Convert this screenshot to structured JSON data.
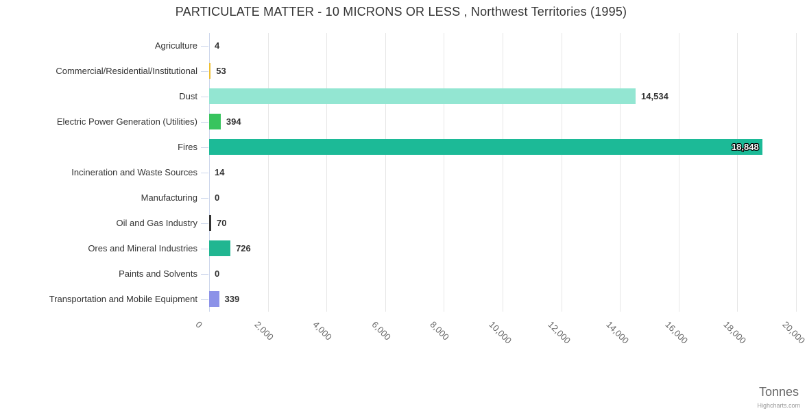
{
  "chart_data": {
    "type": "bar",
    "title": "PARTICULATE MATTER - 10 MICRONS OR LESS , Northwest Territories (1995)",
    "xlabel": "Tonnes",
    "ylabel": "",
    "xlim": [
      0,
      20000
    ],
    "x_tick_labels": [
      "0",
      "2,000",
      "4,000",
      "6,000",
      "8,000",
      "10,000",
      "12,000",
      "14,000",
      "16,000",
      "18,000",
      "20,000"
    ],
    "grid": true,
    "legend": false,
    "categories": [
      "Agriculture",
      "Commercial/Residential/Institutional",
      "Dust",
      "Electric Power Generation (Utilities)",
      "Fires",
      "Incineration and Waste Sources",
      "Manufacturing",
      "Oil and Gas Industry",
      "Ores and Mineral Industries",
      "Paints and Solvents",
      "Transportation and Mobile Equipment"
    ],
    "values": [
      4,
      53,
      14534,
      394,
      18848,
      14,
      0,
      70,
      726,
      0,
      339
    ],
    "value_labels": [
      "4",
      "53",
      "14,534",
      "394",
      "18,848",
      "14",
      "0",
      "70",
      "726",
      "0",
      "339"
    ],
    "bar_colors": [
      null,
      "#edbe30",
      "#93e6d2",
      "#38c45e",
      "#1cba97",
      null,
      null,
      "#333333",
      "#21b691",
      null,
      "#8c92e8"
    ],
    "label_inside": [
      false,
      false,
      false,
      false,
      true,
      false,
      false,
      false,
      false,
      false,
      false
    ],
    "credits": "Highcharts.com",
    "colors": {
      "grid": "#e6e6e6",
      "axis_line": "#ccd6eb",
      "tick": "#ccd6eb",
      "title": "#333333",
      "category_label": "#333333",
      "value_label": "#333333",
      "x_label": "#666666",
      "axis_title": "#666666",
      "credits": "#999999",
      "background": "#ffffff"
    }
  }
}
